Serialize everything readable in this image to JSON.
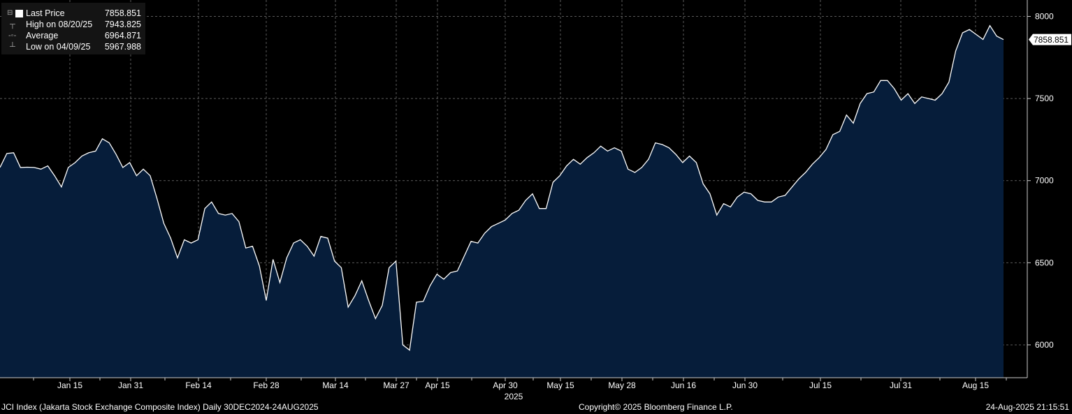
{
  "legend": {
    "items": [
      {
        "label": "Last Price",
        "value": "7858.851",
        "icon": "square-swatch-icon"
      },
      {
        "label": "High on 08/20/25",
        "value": "7943.825",
        "icon": "high-marker-icon"
      },
      {
        "label": "Average",
        "value": "6964.871",
        "icon": "average-line-icon"
      },
      {
        "label": "Low on 04/09/25",
        "value": "5967.988",
        "icon": "low-marker-icon"
      }
    ]
  },
  "footer": {
    "left": "JCI Index (Jakarta Stock Exchange Composite Index)  Daily 30DEC2024-24AUG2025",
    "center": "Copyright© 2025 Bloomberg Finance L.P.",
    "right": "24-Aug-2025 21:15:51"
  },
  "colors": {
    "line": "#ffffff",
    "fill": "#061d3a",
    "grid": "#5a5a5a",
    "background": "#000000"
  },
  "chart_data": {
    "type": "area",
    "ylim": [
      5800,
      8100
    ],
    "yticks": [
      6000,
      6500,
      7000,
      7500,
      8000
    ],
    "xticks": [
      "Jan 15",
      "Jan 31",
      "Feb 14",
      "Feb 28",
      "Mar 14",
      "Mar 27",
      "Apr 15",
      "Apr 30",
      "May 15",
      "May 28",
      "Jun 16",
      "Jun 30",
      "Jul 15",
      "Jul 31",
      "Aug 15"
    ],
    "year_label": "2025",
    "last_value_label": "7858.851",
    "grid": true,
    "series": [
      {
        "name": "Last Price",
        "values": [
          7080,
          7165,
          7170,
          7080,
          7082,
          7080,
          7070,
          7090,
          7030,
          6962,
          7080,
          7110,
          7150,
          7170,
          7180,
          7255,
          7230,
          7160,
          7080,
          7110,
          7030,
          7070,
          7030,
          6890,
          6740,
          6650,
          6530,
          6640,
          6620,
          6640,
          6830,
          6870,
          6800,
          6790,
          6800,
          6750,
          6590,
          6600,
          6480,
          6270,
          6520,
          6380,
          6530,
          6620,
          6640,
          6600,
          6540,
          6660,
          6650,
          6510,
          6470,
          6230,
          6300,
          6390,
          6270,
          6160,
          6240,
          6470,
          6510,
          6000,
          5968,
          6260,
          6265,
          6360,
          6430,
          6400,
          6440,
          6450,
          6540,
          6630,
          6620,
          6680,
          6720,
          6740,
          6760,
          6800,
          6820,
          6880,
          6920,
          6830,
          6830,
          6990,
          7030,
          7090,
          7130,
          7100,
          7140,
          7170,
          7210,
          7180,
          7200,
          7180,
          7070,
          7050,
          7080,
          7130,
          7230,
          7220,
          7200,
          7160,
          7110,
          7150,
          7110,
          6980,
          6920,
          6790,
          6860,
          6840,
          6900,
          6930,
          6920,
          6880,
          6870,
          6870,
          6900,
          6910,
          6960,
          7010,
          7050,
          7100,
          7140,
          7190,
          7280,
          7300,
          7400,
          7350,
          7470,
          7530,
          7540,
          7610,
          7610,
          7560,
          7490,
          7530,
          7470,
          7510,
          7500,
          7490,
          7530,
          7600,
          7790,
          7900,
          7920,
          7890,
          7860,
          7944,
          7880,
          7859
        ]
      }
    ]
  }
}
